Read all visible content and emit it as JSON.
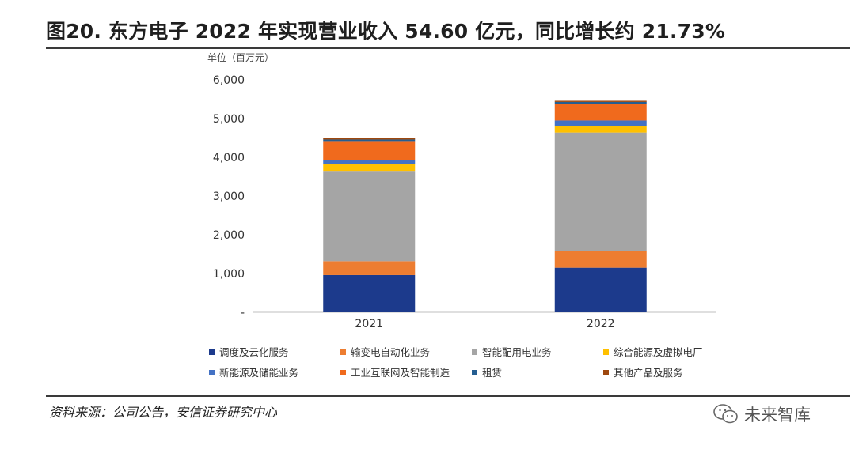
{
  "title": "图20. 东方电子 2022 年实现营业收入 54.60 亿元，同比增长约 21.73%",
  "source": "资料来源：公司公告，安信证券研究中心",
  "watermark": "未来智库",
  "chart_data": {
    "type": "bar",
    "stacked": true,
    "unit_label": "单位（百万元）",
    "categories": [
      "2021",
      "2022"
    ],
    "ylim": [
      0,
      6000
    ],
    "yticks": [
      "-",
      "1,000",
      "2,000",
      "3,000",
      "4,000",
      "5,000",
      "6,000"
    ],
    "grid": false,
    "legend_position": "bottom",
    "series": [
      {
        "name": "调度及云化服务",
        "color": "#1c3a8c",
        "values": [
          960,
          1150
        ]
      },
      {
        "name": "输变电自动化业务",
        "color": "#ed7d31",
        "values": [
          360,
          430
        ]
      },
      {
        "name": "智能配用电业务",
        "color": "#a5a5a5",
        "values": [
          2330,
          3060
        ]
      },
      {
        "name": "综合能源及虚拟电厂",
        "color": "#ffc000",
        "values": [
          180,
          160
        ]
      },
      {
        "name": "新能源及储能业务",
        "color": "#4472c4",
        "values": [
          90,
          150
        ]
      },
      {
        "name": "工业互联网及智能制造",
        "color": "#f06a1d",
        "values": [
          480,
          420
        ]
      },
      {
        "name": "租赁",
        "color": "#255e91",
        "values": [
          60,
          60
        ]
      },
      {
        "name": "其他产品及服务",
        "color": "#9e480e",
        "values": [
          30,
          30
        ]
      }
    ]
  }
}
